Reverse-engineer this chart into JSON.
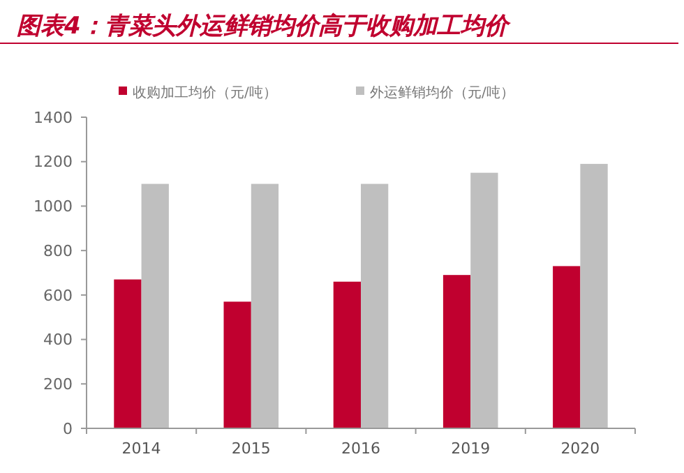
{
  "chart_data": {
    "type": "bar",
    "title": "图表4：青菜头外运鲜销均价高于收购加工均价",
    "categories": [
      "2014",
      "2015",
      "2016",
      "2019",
      "2020"
    ],
    "series": [
      {
        "name": "收购加工均价（元/吨）",
        "color": "#c0002f",
        "values": [
          670,
          570,
          660,
          690,
          730
        ]
      },
      {
        "name": "外运鲜销均价（元/吨）",
        "color": "#bfbfbf",
        "values": [
          1100,
          1100,
          1100,
          1150,
          1190
        ]
      }
    ],
    "ylim": [
      0,
      1400
    ],
    "yticks": [
      0,
      200,
      400,
      600,
      800,
      1000,
      1200,
      1400
    ],
    "grid": false,
    "legend": "top"
  }
}
